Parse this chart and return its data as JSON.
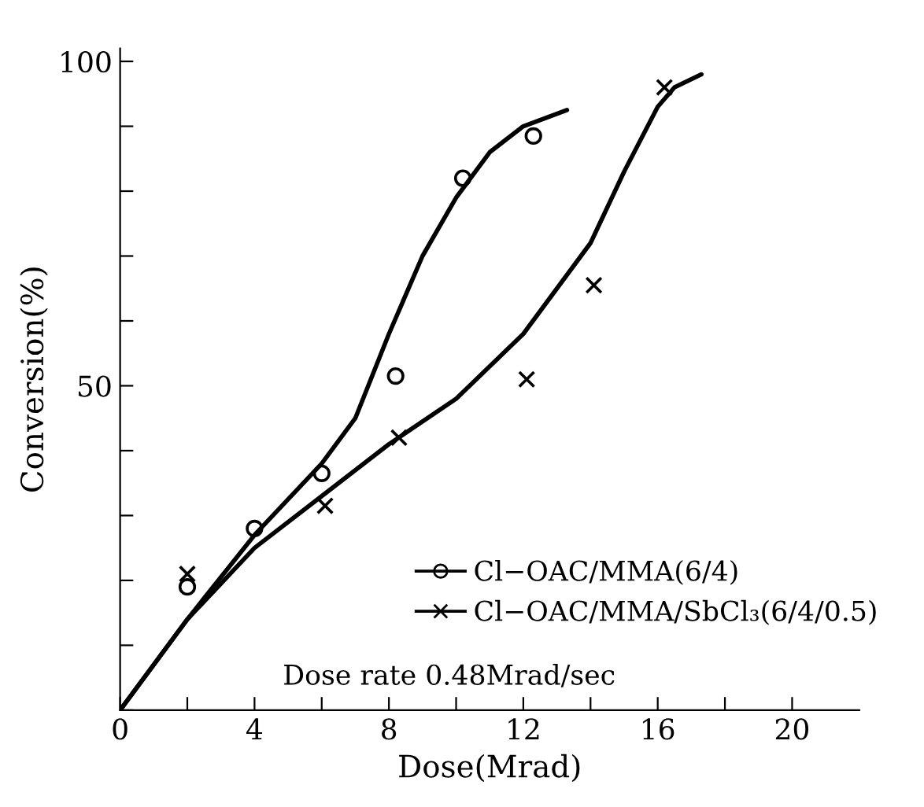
{
  "chart_data": {
    "type": "scatter",
    "xlabel": "Dose(Mrad)",
    "ylabel": "Conversion(%)",
    "xlim": [
      0,
      22
    ],
    "ylim": [
      0,
      102
    ],
    "xticks": [
      0,
      {
        "value": 2,
        "label": null
      },
      4,
      {
        "value": 6,
        "label": null
      },
      8,
      {
        "value": 10,
        "label": null
      },
      12,
      {
        "value": 14,
        "label": null
      },
      16,
      {
        "value": 18,
        "label": null
      },
      20
    ],
    "yticks": [
      {
        "value": 0,
        "label": null
      },
      {
        "value": 10,
        "label": null
      },
      {
        "value": 20,
        "label": null
      },
      {
        "value": 30,
        "label": null
      },
      {
        "value": 40,
        "label": null
      },
      50,
      {
        "value": 60,
        "label": null
      },
      {
        "value": 70,
        "label": null
      },
      {
        "value": 80,
        "label": null
      },
      {
        "value": 90,
        "label": null
      },
      100
    ],
    "grid": false,
    "legend": "bottom right",
    "annotations": [
      "Dose rate 0.48Mrad/sec"
    ],
    "series": [
      {
        "name": "Cl−OAC/MMA(6/4)",
        "color": "#000000",
        "marker": "circle",
        "x": [
          2,
          4,
          6,
          8.2,
          10.2,
          12.3
        ],
        "values": [
          19,
          28,
          36.5,
          51.5,
          82,
          88.5
        ]
      },
      {
        "name": "Cl−OAC/MMA/SbCl₃(6/4/0.5)",
        "color": "#000000",
        "marker": "cross",
        "x": [
          2,
          6.1,
          8.3,
          12.1,
          14.1,
          16.2
        ],
        "values": [
          21,
          31.5,
          42,
          51,
          65.5,
          96
        ]
      },
      {
        "type": "line",
        "color": "#000000",
        "x": [
          0,
          2,
          4,
          6,
          7,
          8,
          9,
          10,
          11,
          12,
          13.3
        ],
        "values": [
          0,
          14,
          27,
          38,
          45,
          58,
          70,
          79,
          86,
          90,
          92.5
        ]
      },
      {
        "type": "line",
        "color": "#000000",
        "x": [
          0,
          2,
          4,
          6,
          8,
          10,
          12,
          14,
          15,
          16,
          16.5,
          17.3
        ],
        "values": [
          0,
          14,
          25,
          33,
          41,
          48,
          58,
          72,
          83,
          93,
          96,
          98
        ]
      }
    ]
  }
}
